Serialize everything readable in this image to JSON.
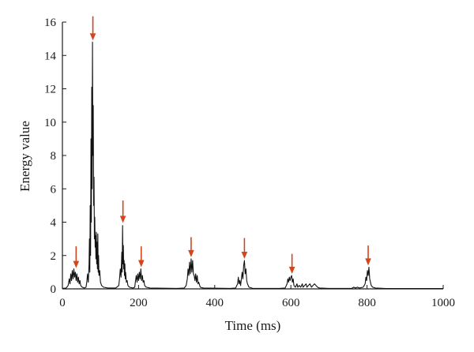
{
  "chart_data": {
    "type": "line",
    "xlabel": "Time (ms)",
    "ylabel": "Energy value",
    "xlim": [
      0,
      1000
    ],
    "ylim": [
      0,
      16
    ],
    "x_ticks": [
      0,
      200,
      400,
      600,
      800,
      1000
    ],
    "y_ticks": [
      0,
      2,
      4,
      6,
      8,
      10,
      12,
      14,
      16
    ],
    "grid": false,
    "line_color": "#111111",
    "arrow_color": "#d2461e",
    "series": [
      {
        "points": [
          [
            0,
            0.03
          ],
          [
            10,
            0.05
          ],
          [
            15,
            0.2
          ],
          [
            18,
            0.6
          ],
          [
            20,
            0.3
          ],
          [
            22,
            0.9
          ],
          [
            24,
            0.5
          ],
          [
            26,
            1.1
          ],
          [
            28,
            0.6
          ],
          [
            30,
            1.2
          ],
          [
            32,
            0.7
          ],
          [
            34,
            1.0
          ],
          [
            36,
            0.5
          ],
          [
            38,
            0.9
          ],
          [
            40,
            0.4
          ],
          [
            42,
            0.7
          ],
          [
            44,
            0.3
          ],
          [
            46,
            0.5
          ],
          [
            48,
            0.2
          ],
          [
            52,
            0.1
          ],
          [
            58,
            0.05
          ],
          [
            62,
            0.1
          ],
          [
            64,
            0.4
          ],
          [
            66,
            0.9
          ],
          [
            68,
            0.4
          ],
          [
            70,
            1.5
          ],
          [
            71,
            3.0
          ],
          [
            72,
            1.0
          ],
          [
            73,
            5.0
          ],
          [
            74,
            2.0
          ],
          [
            75,
            9.0
          ],
          [
            76,
            4.0
          ],
          [
            77,
            12.1
          ],
          [
            78,
            6.0
          ],
          [
            79,
            14.8
          ],
          [
            80,
            8.0
          ],
          [
            81,
            11.0
          ],
          [
            82,
            5.0
          ],
          [
            83,
            6.7
          ],
          [
            84,
            3.0
          ],
          [
            85,
            4.3
          ],
          [
            86,
            2.5
          ],
          [
            87,
            3.2
          ],
          [
            88,
            1.8
          ],
          [
            89,
            3.4
          ],
          [
            90,
            1.5
          ],
          [
            91,
            2.8
          ],
          [
            92,
            1.2
          ],
          [
            93,
            3.3
          ],
          [
            94,
            1.0
          ],
          [
            95,
            2.0
          ],
          [
            96,
            0.8
          ],
          [
            98,
            1.1
          ],
          [
            100,
            0.4
          ],
          [
            103,
            0.2
          ],
          [
            108,
            0.1
          ],
          [
            120,
            0.05
          ],
          [
            140,
            0.05
          ],
          [
            148,
            0.2
          ],
          [
            150,
            0.6
          ],
          [
            152,
            1.2
          ],
          [
            154,
            0.7
          ],
          [
            156,
            2.2
          ],
          [
            157,
            1.0
          ],
          [
            158,
            3.8
          ],
          [
            159,
            1.5
          ],
          [
            160,
            2.6
          ],
          [
            161,
            1.2
          ],
          [
            162,
            1.7
          ],
          [
            163,
            0.8
          ],
          [
            164,
            1.5
          ],
          [
            165,
            0.6
          ],
          [
            166,
            1.0
          ],
          [
            168,
            0.4
          ],
          [
            170,
            0.5
          ],
          [
            172,
            0.2
          ],
          [
            176,
            0.1
          ],
          [
            185,
            0.05
          ],
          [
            190,
            0.1
          ],
          [
            192,
            0.5
          ],
          [
            194,
            0.8
          ],
          [
            196,
            0.4
          ],
          [
            198,
            0.9
          ],
          [
            200,
            0.5
          ],
          [
            202,
            1.0
          ],
          [
            204,
            0.6
          ],
          [
            206,
            1.2
          ],
          [
            208,
            0.5
          ],
          [
            210,
            0.8
          ],
          [
            212,
            0.4
          ],
          [
            214,
            0.5
          ],
          [
            216,
            0.2
          ],
          [
            220,
            0.1
          ],
          [
            230,
            0.05
          ],
          [
            300,
            0.03
          ],
          [
            320,
            0.05
          ],
          [
            325,
            0.2
          ],
          [
            328,
            0.6
          ],
          [
            330,
            1.2
          ],
          [
            332,
            0.8
          ],
          [
            334,
            1.6
          ],
          [
            336,
            0.9
          ],
          [
            338,
            1.8
          ],
          [
            340,
            1.0
          ],
          [
            342,
            1.7
          ],
          [
            344,
            0.9
          ],
          [
            346,
            0.8
          ],
          [
            348,
            0.5
          ],
          [
            350,
            0.9
          ],
          [
            352,
            0.4
          ],
          [
            354,
            0.8
          ],
          [
            356,
            0.3
          ],
          [
            358,
            0.4
          ],
          [
            362,
            0.1
          ],
          [
            370,
            0.05
          ],
          [
            440,
            0.03
          ],
          [
            455,
            0.05
          ],
          [
            460,
            0.3
          ],
          [
            462,
            0.7
          ],
          [
            464,
            0.3
          ],
          [
            466,
            0.5
          ],
          [
            468,
            0.2
          ],
          [
            470,
            0.6
          ],
          [
            472,
            1.0
          ],
          [
            474,
            0.6
          ],
          [
            476,
            1.4
          ],
          [
            478,
            1.7
          ],
          [
            480,
            0.9
          ],
          [
            482,
            1.2
          ],
          [
            484,
            0.5
          ],
          [
            486,
            0.3
          ],
          [
            490,
            0.1
          ],
          [
            500,
            0.03
          ],
          [
            570,
            0.03
          ],
          [
            585,
            0.05
          ],
          [
            590,
            0.3
          ],
          [
            592,
            0.6
          ],
          [
            594,
            0.4
          ],
          [
            596,
            0.7
          ],
          [
            598,
            0.5
          ],
          [
            600,
            0.7
          ],
          [
            602,
            0.8
          ],
          [
            604,
            0.4
          ],
          [
            606,
            0.6
          ],
          [
            608,
            0.2
          ],
          [
            612,
            0.1
          ],
          [
            616,
            0.3
          ],
          [
            618,
            0.1
          ],
          [
            622,
            0.2
          ],
          [
            626,
            0.1
          ],
          [
            630,
            0.3
          ],
          [
            632,
            0.1
          ],
          [
            636,
            0.2
          ],
          [
            640,
            0.3
          ],
          [
            642,
            0.1
          ],
          [
            646,
            0.2
          ],
          [
            650,
            0.3
          ],
          [
            654,
            0.1
          ],
          [
            658,
            0.2
          ],
          [
            662,
            0.3
          ],
          [
            666,
            0.2
          ],
          [
            670,
            0.1
          ],
          [
            675,
            0.05
          ],
          [
            700,
            0.03
          ],
          [
            760,
            0.03
          ],
          [
            765,
            0.1
          ],
          [
            770,
            0.05
          ],
          [
            775,
            0.1
          ],
          [
            780,
            0.05
          ],
          [
            790,
            0.1
          ],
          [
            795,
            0.3
          ],
          [
            797,
            0.7
          ],
          [
            799,
            0.5
          ],
          [
            801,
            1.1
          ],
          [
            803,
            0.8
          ],
          [
            805,
            1.3
          ],
          [
            807,
            0.6
          ],
          [
            809,
            0.4
          ],
          [
            811,
            0.2
          ],
          [
            815,
            0.1
          ],
          [
            822,
            0.05
          ],
          [
            850,
            0.02
          ],
          [
            1000,
            0.02
          ]
        ]
      }
    ],
    "annotations": [
      {
        "kind": "arrow",
        "x": 36,
        "y_tail": 2.55,
        "y_head": 1.25
      },
      {
        "kind": "arrow",
        "x": 80,
        "y_tail": 16.35,
        "y_head": 14.9
      },
      {
        "kind": "arrow",
        "x": 159,
        "y_tail": 5.3,
        "y_head": 3.95
      },
      {
        "kind": "arrow",
        "x": 207,
        "y_tail": 2.55,
        "y_head": 1.3
      },
      {
        "kind": "arrow",
        "x": 338,
        "y_tail": 3.1,
        "y_head": 1.9
      },
      {
        "kind": "arrow",
        "x": 478,
        "y_tail": 3.05,
        "y_head": 1.8
      },
      {
        "kind": "arrow",
        "x": 603,
        "y_tail": 2.1,
        "y_head": 0.9
      },
      {
        "kind": "arrow",
        "x": 803,
        "y_tail": 2.6,
        "y_head": 1.4
      }
    ]
  }
}
